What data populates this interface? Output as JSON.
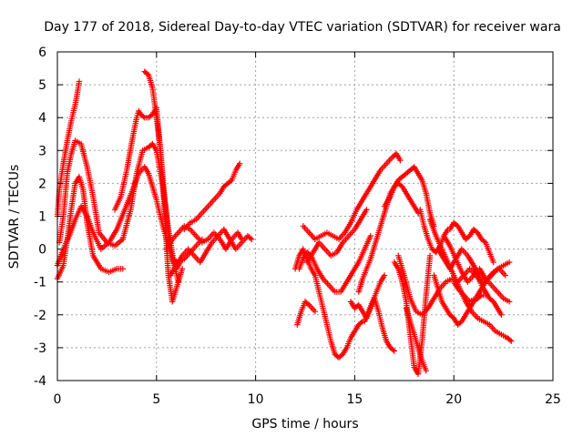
{
  "chart_data": {
    "type": "scatter",
    "title": "Day 177 of 2018, Sidereal Day-to-day VTEC variation (SDTVAR) for receiver wara",
    "xlabel": "GPS time / hours",
    "ylabel": "SDTVAR / TECUs",
    "xlim": [
      0,
      25
    ],
    "ylim": [
      -4,
      6
    ],
    "x_ticks": [
      0,
      5,
      10,
      15,
      20,
      25
    ],
    "y_ticks": [
      -4,
      -3,
      -2,
      -1,
      0,
      1,
      2,
      3,
      4,
      5,
      6
    ],
    "grid": true,
    "marker": "+",
    "colors": {
      "series": "#ff0000",
      "grid": "#a0a0a0",
      "axes": "#000000"
    },
    "series": [
      {
        "name": "s1",
        "x": [
          0.0,
          0.1,
          0.3,
          0.5,
          0.7,
          0.9,
          1.05,
          1.1
        ],
        "y": [
          1.0,
          1.8,
          2.6,
          3.3,
          3.9,
          4.4,
          4.9,
          5.1
        ]
      },
      {
        "name": "s2",
        "x": [
          0.0,
          0.3,
          0.5,
          0.7,
          0.9,
          1.1,
          1.3,
          1.5,
          1.8,
          2.2,
          2.6,
          3.0,
          3.3
        ],
        "y": [
          -0.9,
          -0.5,
          0.3,
          1.2,
          2.0,
          2.2,
          1.8,
          0.8,
          -0.2,
          -0.6,
          -0.7,
          -0.6,
          -0.6
        ]
      },
      {
        "name": "s3",
        "x": [
          0.1,
          0.3,
          0.5,
          0.7,
          0.9,
          1.2,
          1.5,
          1.8,
          2.1,
          2.5,
          2.9,
          3.3,
          3.7,
          4.0,
          4.3,
          4.6,
          4.8,
          5.0,
          5.3,
          5.6,
          5.9,
          6.1
        ],
        "y": [
          0.2,
          1.0,
          2.3,
          2.9,
          3.3,
          3.2,
          2.5,
          1.6,
          0.5,
          0.2,
          0.1,
          0.3,
          1.2,
          2.3,
          3.0,
          3.1,
          3.2,
          3.0,
          2.0,
          0.6,
          -0.5,
          -1.0
        ]
      },
      {
        "name": "s4",
        "x": [
          0.0,
          0.3,
          0.6,
          0.9,
          1.2,
          1.5,
          1.8,
          2.2,
          2.6,
          3.0,
          3.4,
          3.8,
          4.1,
          4.4,
          4.6,
          4.8,
          5.0,
          5.2,
          5.5,
          5.8,
          6.1,
          6.4,
          6.7,
          7.0,
          7.3
        ],
        "y": [
          -0.5,
          0.0,
          0.4,
          0.9,
          1.3,
          1.0,
          0.5,
          0.0,
          0.2,
          0.6,
          1.2,
          1.8,
          2.3,
          2.5,
          2.3,
          1.9,
          1.5,
          1.0,
          0.3,
          -0.3,
          -0.4,
          -0.3,
          -0.1,
          0.1,
          0.3
        ]
      },
      {
        "name": "s5",
        "x": [
          2.9,
          3.2,
          3.5,
          3.8,
          4.0,
          4.1,
          4.2,
          4.4,
          4.6,
          4.8,
          5.0,
          5.2,
          5.4,
          5.6,
          5.8,
          6.0,
          6.3
        ],
        "y": [
          1.2,
          1.6,
          2.4,
          3.4,
          4.0,
          4.2,
          4.1,
          4.0,
          4.0,
          4.1,
          4.3,
          3.0,
          1.2,
          -0.8,
          -1.6,
          -1.2,
          -0.6
        ]
      },
      {
        "name": "s6",
        "x": [
          4.4,
          4.6,
          4.8,
          5.0,
          5.2,
          5.4,
          5.6,
          5.8,
          6.0,
          6.2
        ],
        "y": [
          5.4,
          5.3,
          4.9,
          4.0,
          3.0,
          1.6,
          0.4,
          -0.3,
          -0.6,
          -0.4
        ]
      },
      {
        "name": "s7",
        "x": [
          5.5,
          5.8,
          6.1,
          6.4,
          6.7,
          7.0,
          7.3,
          7.6,
          7.9,
          8.2,
          8.5,
          8.8,
          9.1,
          9.3
        ],
        "y": [
          0.0,
          0.3,
          0.5,
          0.7,
          0.6,
          0.4,
          0.2,
          0.3,
          0.5,
          0.3,
          0.0,
          0.3,
          0.5,
          0.3
        ]
      },
      {
        "name": "s8",
        "x": [
          6.4,
          6.7,
          7.0,
          7.3,
          7.6,
          7.9,
          8.2,
          8.4,
          8.6,
          8.8,
          9.0,
          9.2
        ],
        "y": [
          0.6,
          0.8,
          0.9,
          1.1,
          1.3,
          1.5,
          1.7,
          1.9,
          2.0,
          2.1,
          2.4,
          2.6
        ]
      },
      {
        "name": "s9",
        "x": [
          5.7,
          6.0,
          6.3,
          6.6,
          6.9,
          7.2,
          7.5,
          7.8,
          8.1,
          8.4,
          8.7,
          9.0,
          9.3,
          9.6,
          9.8
        ],
        "y": [
          -0.8,
          -0.5,
          -0.2,
          0.0,
          -0.2,
          -0.4,
          -0.1,
          0.2,
          0.4,
          0.6,
          0.3,
          0.0,
          0.2,
          0.4,
          0.3
        ]
      },
      {
        "name": "s10",
        "x": [
          12.0,
          12.2,
          12.4,
          12.6,
          12.8,
          13.0,
          13.2,
          13.4,
          13.6,
          13.8,
          14.0,
          14.2,
          14.4,
          14.6,
          14.8,
          15.0,
          15.2,
          15.4
        ],
        "y": [
          -0.6,
          -0.2,
          0.0,
          -0.3,
          -0.6,
          -0.8,
          -1.3,
          -1.8,
          -2.3,
          -2.8,
          -3.2,
          -3.3,
          -3.2,
          -3.0,
          -2.7,
          -2.5,
          -2.3,
          -2.2
        ]
      },
      {
        "name": "s11",
        "x": [
          12.1,
          12.3,
          12.5,
          12.7,
          13.0
        ],
        "y": [
          -2.3,
          -1.9,
          -1.6,
          -1.7,
          -1.9
        ]
      },
      {
        "name": "s12",
        "x": [
          12.2,
          12.4,
          12.6,
          12.8,
          13.1,
          13.4,
          13.7,
          14.0,
          14.3,
          14.6,
          14.9,
          15.2,
          15.5,
          15.8
        ],
        "y": [
          -0.6,
          -0.3,
          -0.1,
          -0.2,
          -0.6,
          -0.9,
          -1.1,
          -1.3,
          -1.3,
          -1.0,
          -0.7,
          -0.4,
          0.0,
          0.4
        ]
      },
      {
        "name": "s13",
        "x": [
          12.4,
          12.7,
          13.0,
          13.3,
          13.6,
          13.9,
          14.2,
          14.5,
          14.8,
          15.1,
          15.4,
          15.7,
          16.0,
          16.3,
          16.6,
          16.9,
          17.1,
          17.3
        ],
        "y": [
          0.7,
          0.5,
          0.3,
          0.4,
          0.5,
          0.4,
          0.3,
          0.5,
          0.8,
          1.2,
          1.5,
          1.8,
          2.1,
          2.4,
          2.6,
          2.8,
          2.9,
          2.7
        ]
      },
      {
        "name": "s14",
        "x": [
          12.6,
          12.9,
          13.2,
          13.5,
          13.8,
          14.1,
          14.4,
          14.7,
          15.0,
          15.3,
          15.6
        ],
        "y": [
          -0.4,
          -0.1,
          0.2,
          0.0,
          -0.2,
          -0.1,
          0.2,
          0.4,
          0.6,
          0.9,
          1.2
        ]
      },
      {
        "name": "s15",
        "x": [
          14.8,
          15.0,
          15.2,
          15.4,
          15.6,
          15.8,
          16.0,
          16.2,
          16.4,
          16.6,
          16.8,
          17.0
        ],
        "y": [
          -1.6,
          -1.8,
          -1.7,
          -1.9,
          -2.1,
          -1.8,
          -1.5,
          -1.9,
          -2.4,
          -2.8,
          -3.0,
          -3.1
        ]
      },
      {
        "name": "s16",
        "x": [
          15.2,
          15.4,
          15.6,
          15.8,
          16.0,
          16.2,
          16.4,
          16.6,
          16.8,
          17.0,
          17.2,
          17.4,
          17.6,
          17.8,
          18.0,
          18.2
        ],
        "y": [
          -1.3,
          -0.9,
          -0.6,
          -0.3,
          0.1,
          0.5,
          0.9,
          1.3,
          1.7,
          1.9,
          2.0,
          1.9,
          1.7,
          1.5,
          1.3,
          1.1
        ]
      },
      {
        "name": "s17",
        "x": [
          15.5,
          15.7,
          15.9,
          16.1,
          16.3,
          16.5
        ],
        "y": [
          -2.2,
          -1.9,
          -1.6,
          -1.3,
          -1.0,
          -0.8
        ]
      },
      {
        "name": "s18",
        "x": [
          16.5,
          16.8,
          17.0,
          17.2,
          17.4,
          17.6,
          17.8,
          18.0,
          18.2,
          18.4,
          18.6,
          18.8,
          19.0
        ],
        "y": [
          1.3,
          1.6,
          1.9,
          2.1,
          2.2,
          2.3,
          2.4,
          2.5,
          2.3,
          2.1,
          1.7,
          1.1,
          0.7
        ]
      },
      {
        "name": "s19",
        "x": [
          17.0,
          17.2,
          17.4,
          17.6,
          17.8,
          18.0,
          18.2,
          18.4,
          18.6,
          18.8
        ],
        "y": [
          -0.4,
          -0.6,
          -1.0,
          -1.6,
          -2.6,
          -3.6,
          -3.8,
          -2.8,
          -1.4,
          -0.2
        ]
      },
      {
        "name": "s20",
        "x": [
          17.6,
          17.8,
          18.0,
          18.2,
          18.4,
          18.6
        ],
        "y": [
          -1.8,
          -2.2,
          -2.6,
          -3.0,
          -3.4,
          -3.7
        ]
      },
      {
        "name": "s21",
        "x": [
          17.2,
          17.5,
          17.8,
          18.1,
          18.4,
          18.7,
          19.0,
          19.3,
          19.6,
          19.9,
          20.2,
          20.5,
          20.8,
          21.1,
          21.4
        ],
        "y": [
          -0.2,
          -0.8,
          -1.5,
          -1.9,
          -2.0,
          -1.8,
          -1.5,
          -1.2,
          -1.0,
          -0.9,
          -1.0,
          -0.8,
          -0.6,
          -0.8,
          -1.0
        ]
      },
      {
        "name": "s22",
        "x": [
          18.3,
          18.5,
          18.7,
          18.9,
          19.1,
          19.3,
          19.5,
          19.7
        ],
        "y": [
          1.2,
          0.7,
          0.3,
          0.0,
          -0.1,
          0.1,
          0.4,
          0.6
        ]
      },
      {
        "name": "s23",
        "x": [
          18.8,
          19.1,
          19.4,
          19.7,
          20.0,
          20.3,
          20.6,
          20.9,
          21.2,
          21.5,
          21.8,
          22.1,
          22.4,
          22.7,
          22.9
        ],
        "y": [
          0.9,
          0.4,
          0.0,
          -0.4,
          -0.8,
          -1.2,
          -1.6,
          -1.9,
          -2.1,
          -2.2,
          -2.3,
          -2.5,
          -2.6,
          -2.7,
          -2.8
        ]
      },
      {
        "name": "s24",
        "x": [
          19.0,
          19.2,
          19.4,
          19.6,
          19.8,
          20.0,
          20.2,
          20.4,
          20.6,
          20.8,
          21.0,
          21.2,
          21.4,
          21.6
        ],
        "y": [
          -0.8,
          -1.2,
          -1.6,
          -1.8,
          -2.0,
          -2.1,
          -2.3,
          -2.2,
          -2.0,
          -1.8,
          -1.6,
          -1.5,
          -1.4,
          -1.4
        ]
      },
      {
        "name": "s25",
        "x": [
          19.2,
          19.5,
          19.8,
          20.1,
          20.4,
          20.7,
          21.0,
          21.3,
          21.6,
          21.9,
          22.2,
          22.5,
          22.8
        ],
        "y": [
          0.0,
          -0.3,
          -0.6,
          -0.3,
          0.0,
          -0.2,
          -0.5,
          -0.8,
          -1.0,
          -0.8,
          -0.6,
          -0.5,
          -0.4
        ]
      },
      {
        "name": "s26",
        "x": [
          19.5,
          19.8,
          20.1,
          20.4,
          20.7,
          21.0,
          21.3,
          21.6,
          21.9,
          22.2,
          22.5,
          22.8
        ],
        "y": [
          0.4,
          0.1,
          -0.3,
          -0.7,
          -1.0,
          -0.8,
          -0.6,
          -0.9,
          -1.1,
          -1.3,
          -1.5,
          -1.6
        ]
      },
      {
        "name": "s27",
        "x": [
          19.8,
          20.0,
          20.2,
          20.4,
          20.6,
          20.8,
          21.0,
          21.2,
          21.4,
          21.6,
          21.8,
          22.0
        ],
        "y": [
          0.6,
          0.8,
          0.7,
          0.5,
          0.3,
          0.4,
          0.6,
          0.5,
          0.3,
          0.2,
          -0.1,
          -0.4
        ]
      },
      {
        "name": "s28",
        "x": [
          20.0,
          20.2,
          20.5,
          20.8,
          21.1,
          21.4,
          21.7,
          22.0,
          22.3,
          22.6
        ],
        "y": [
          -1.0,
          -1.2,
          -1.4,
          -1.6,
          -1.5,
          -1.2,
          -0.9,
          -0.7,
          -0.6,
          -0.8
        ]
      },
      {
        "name": "s29",
        "x": [
          20.8,
          21.0,
          21.2,
          21.4,
          21.6,
          21.8,
          22.0,
          22.2,
          22.4
        ],
        "y": [
          -0.3,
          -0.5,
          -0.8,
          -1.1,
          -1.3,
          -1.5,
          -1.6,
          -1.8,
          -2.0
        ]
      }
    ]
  }
}
